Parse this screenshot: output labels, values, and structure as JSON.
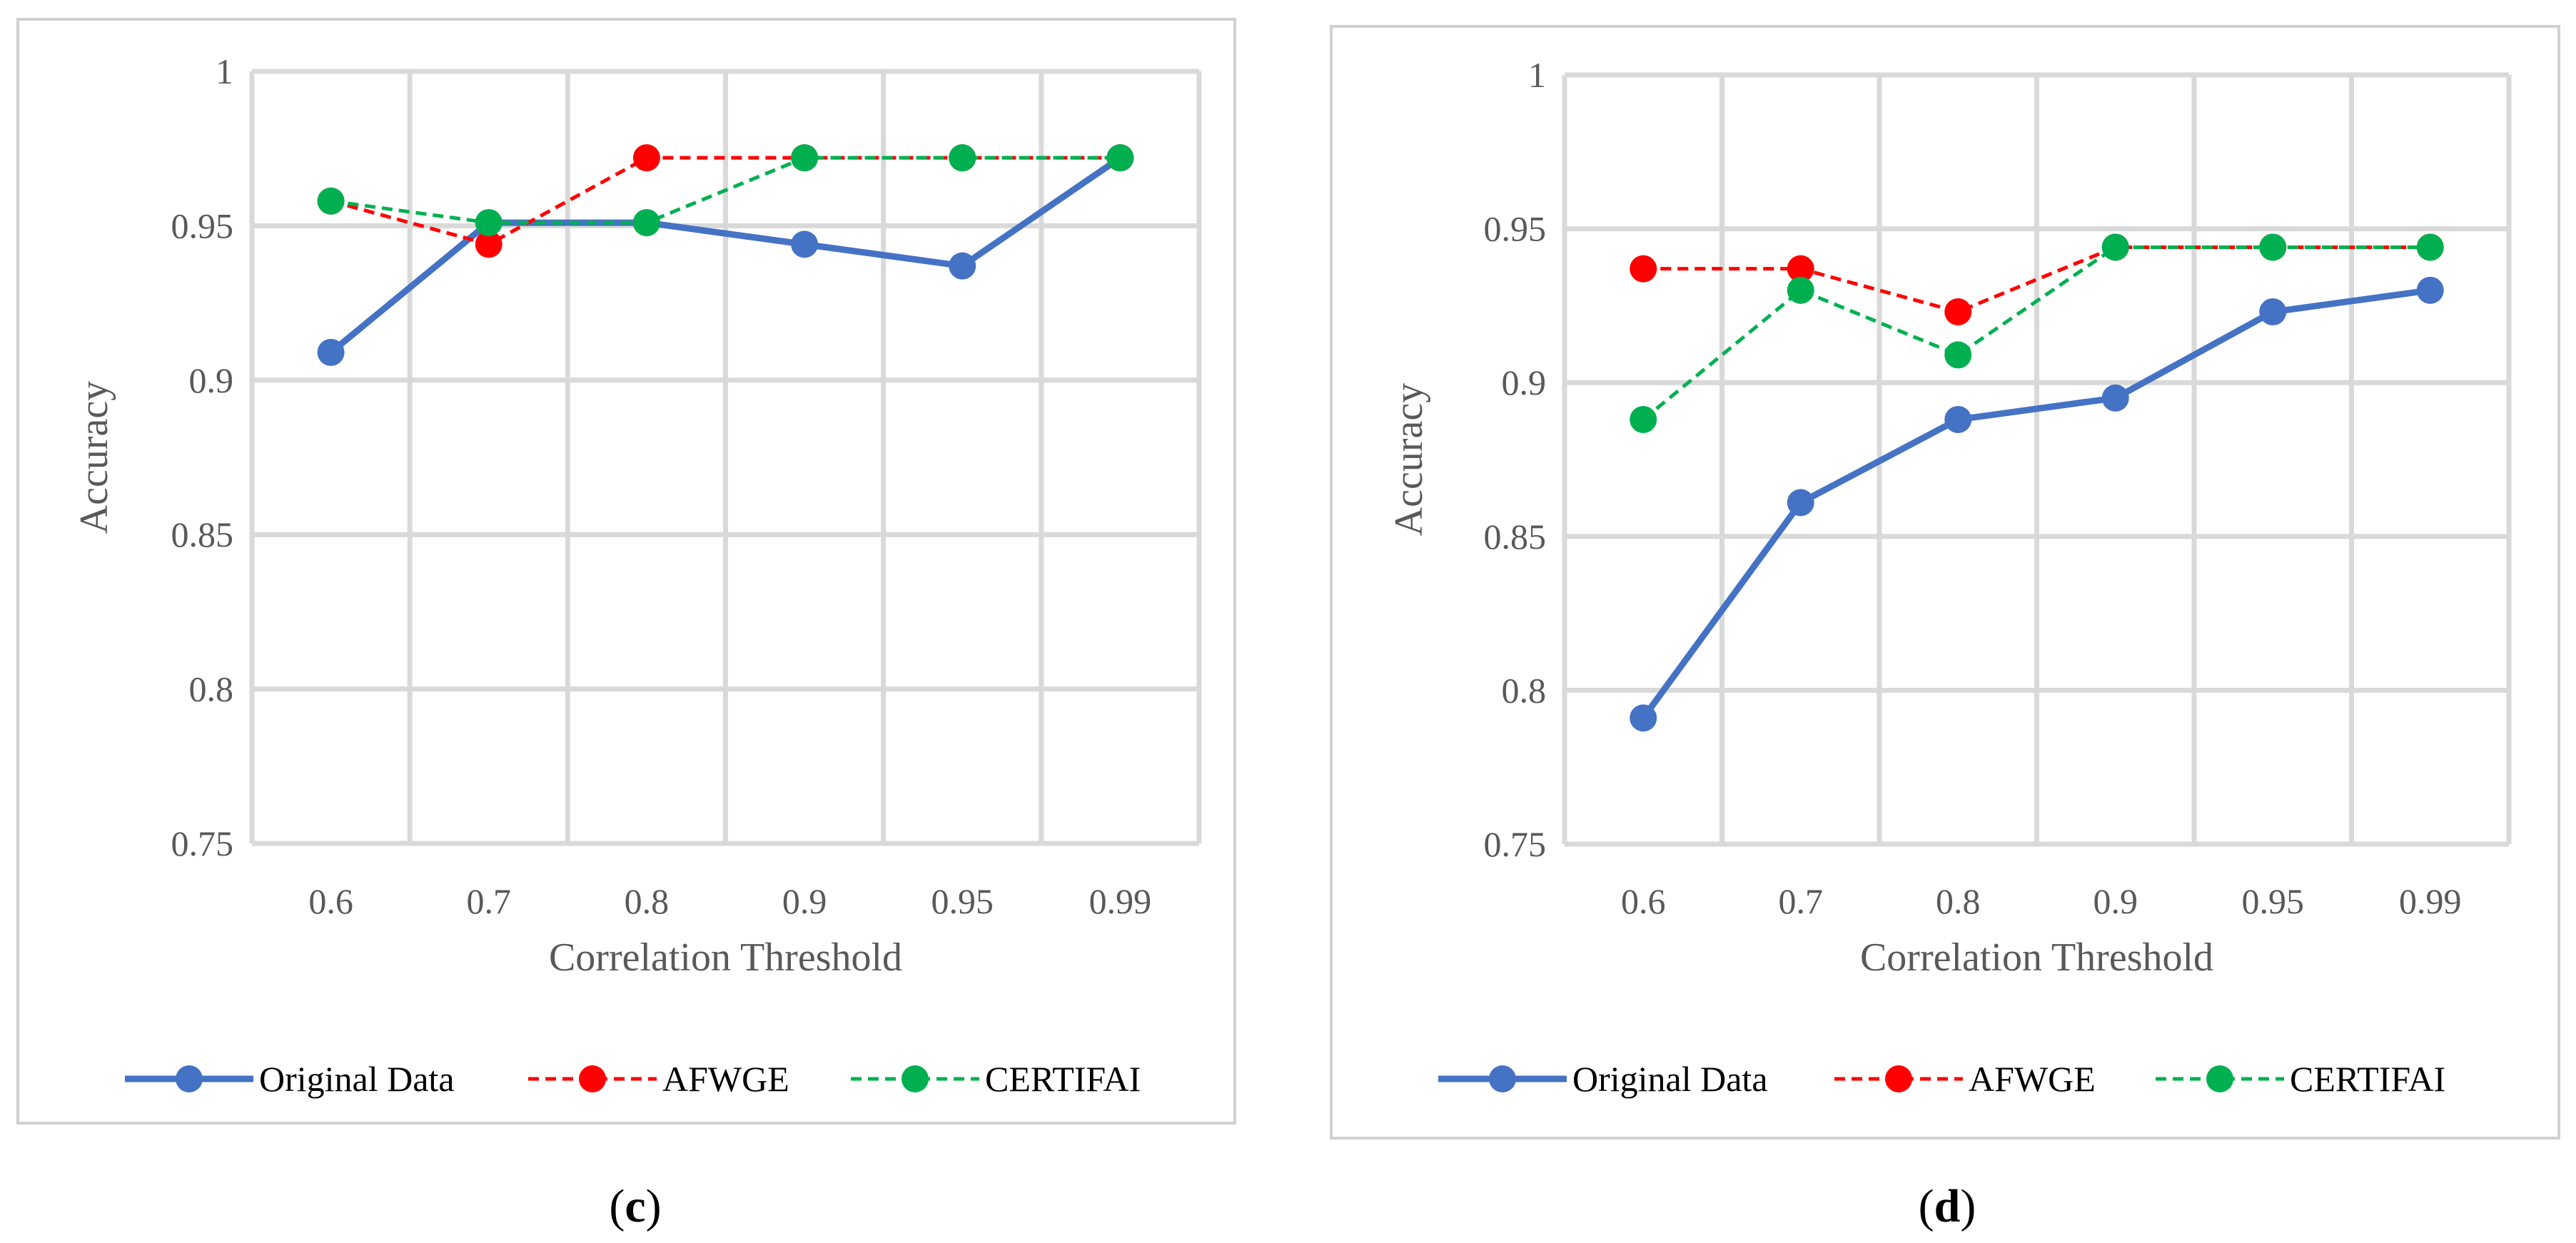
{
  "chart_data": [
    {
      "type": "line",
      "panel_label": "c",
      "categories": [
        "0.6",
        "0.7",
        "0.8",
        "0.9",
        "0.95",
        "0.99"
      ],
      "xlabel": "Correlation Threshold",
      "ylabel": "Accuracy",
      "ylim": [
        0.75,
        1
      ],
      "yticks": [
        0.75,
        0.8,
        0.85,
        0.9,
        0.95,
        1
      ],
      "ytick_labels": [
        "0.75",
        "0.8",
        "0.85",
        "0.9",
        "0.95",
        "1"
      ],
      "grid": true,
      "legend_position": "bottom",
      "series": [
        {
          "name": "Original Data",
          "color": "#4472C4",
          "style": "solid",
          "values": [
            0.909,
            0.951,
            0.951,
            0.944,
            0.937,
            0.972
          ]
        },
        {
          "name": "AFWGE",
          "color": "#FF0000",
          "style": "dashed",
          "values": [
            0.958,
            0.944,
            0.972,
            0.972,
            0.972,
            0.972
          ]
        },
        {
          "name": "CERTIFAI",
          "color": "#00B050",
          "style": "dashed",
          "values": [
            0.958,
            0.951,
            0.951,
            0.972,
            0.972,
            0.972
          ]
        }
      ]
    },
    {
      "type": "line",
      "panel_label": "d",
      "categories": [
        "0.6",
        "0.7",
        "0.8",
        "0.9",
        "0.95",
        "0.99"
      ],
      "xlabel": "Correlation Threshold",
      "ylabel": "Accuracy",
      "ylim": [
        0.75,
        1
      ],
      "yticks": [
        0.75,
        0.8,
        0.85,
        0.9,
        0.95,
        1
      ],
      "ytick_labels": [
        "0.75",
        "0.8",
        "0.85",
        "0.9",
        "0.95",
        "1"
      ],
      "grid": true,
      "legend_position": "bottom",
      "series": [
        {
          "name": "Original Data",
          "color": "#4472C4",
          "style": "solid",
          "values": [
            0.791,
            0.861,
            0.888,
            0.895,
            0.923,
            0.93
          ]
        },
        {
          "name": "AFWGE",
          "color": "#FF0000",
          "style": "dashed",
          "values": [
            0.937,
            0.937,
            0.923,
            0.944,
            0.944,
            0.944
          ]
        },
        {
          "name": "CERTIFAI",
          "color": "#00B050",
          "style": "dashed",
          "values": [
            0.888,
            0.93,
            0.909,
            0.944,
            0.944,
            0.944
          ]
        }
      ]
    }
  ]
}
